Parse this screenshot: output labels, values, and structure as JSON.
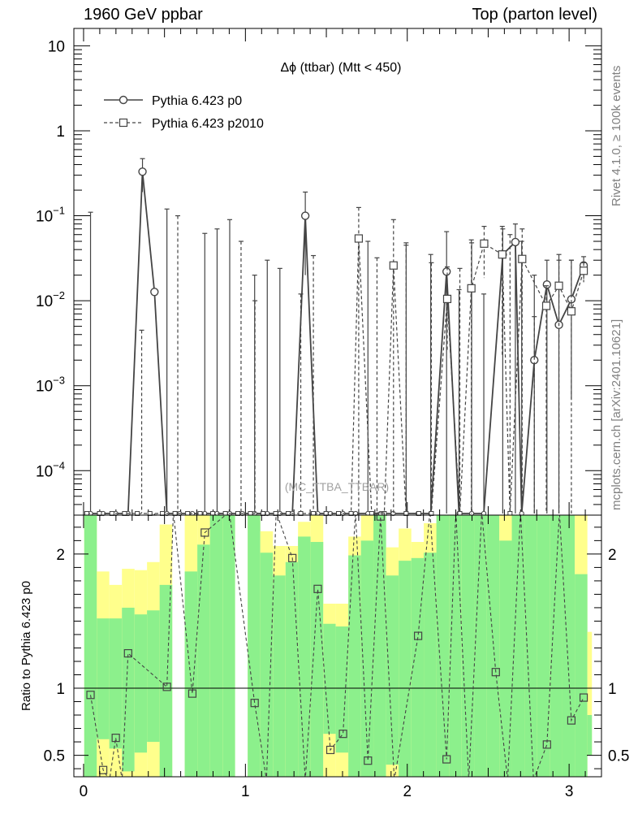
{
  "header": {
    "left": "1960 GeV ppbar",
    "right": "Top (parton level)"
  },
  "side_labels": {
    "rivet": "Rivet 4.1.0, ≥ 100k events",
    "mcplots": "mcplots.cern.ch [arXiv:2401.10621]"
  },
  "watermark": "(MC_TTBA_TTBAR)",
  "colors": {
    "yellow": "#ffff8c",
    "green": "#8cf08c",
    "line": "#444444",
    "grey_text": "#808080"
  },
  "chart_data": [
    {
      "type": "line",
      "scale": "log",
      "title": "Δϕ (ttbar) (Mtt < 450)",
      "xlabel": "",
      "ylabel": "",
      "xlim": [
        -0.06,
        3.2
      ],
      "ylim": [
        3e-05,
        16
      ],
      "yticks": [
        {
          "value": 0.0001,
          "base": "10",
          "exp": "−4"
        },
        {
          "value": 0.001,
          "base": "10",
          "exp": "−3"
        },
        {
          "value": 0.01,
          "base": "10",
          "exp": "−2"
        },
        {
          "value": 0.1,
          "base": "10",
          "exp": "−1"
        },
        {
          "value": 1,
          "base": "1",
          "exp": ""
        },
        {
          "value": 10,
          "base": "10",
          "exp": ""
        }
      ],
      "legend": {
        "position": "top-left",
        "entries": [
          "Pythia 6.423 p0",
          "Pythia 6.423 p2010"
        ]
      },
      "series": [
        {
          "name": "Pythia 6.423 p0",
          "marker": "circle",
          "style": "solid",
          "points": [
            {
              "x": 0.364,
              "y": 0.33,
              "lo": 0.19,
              "hi": 0.47
            },
            {
              "x": 0.438,
              "y": 0.0127,
              "lo": 3e-05,
              "hi": 3e-05
            },
            {
              "x": 1.37,
              "y": 0.1,
              "lo": 0.02,
              "hi": 0.19
            },
            {
              "x": 2.243,
              "y": 0.022,
              "lo": 3e-05,
              "hi": 0.065
            },
            {
              "x": 2.59,
              "y": 0.035,
              "lo": 3e-05,
              "hi": 0.07
            },
            {
              "x": 2.668,
              "y": 0.049,
              "lo": 3e-05,
              "hi": 0.08
            },
            {
              "x": 2.785,
              "y": 0.002,
              "lo": 3e-05,
              "hi": 0.02
            },
            {
              "x": 2.863,
              "y": 0.0155,
              "lo": 3e-05,
              "hi": 0.03
            },
            {
              "x": 2.937,
              "y": 0.0052,
              "lo": 3e-05,
              "hi": 0.035
            },
            {
              "x": 3.014,
              "y": 0.0104,
              "lo": 0.0007,
              "hi": 0.03
            },
            {
              "x": 3.09,
              "y": 0.026,
              "lo": 0.018,
              "hi": 0.033
            }
          ],
          "zero_bins": [
            0.043,
            0.121,
            0.199,
            0.275,
            0.515,
            0.593,
            0.672,
            0.749,
            0.825,
            0.903,
            0.981,
            1.057,
            1.135,
            1.213,
            1.29,
            1.447,
            1.525,
            1.603,
            1.681,
            1.757,
            1.835,
            1.913,
            1.993,
            2.067,
            2.145,
            2.32,
            2.398,
            2.473,
            2.707
          ],
          "empty_bars": [
            {
              "x": 0.043,
              "top": 0.11
            },
            {
              "x": 0.515,
              "top": 0.12
            },
            {
              "x": 0.749,
              "top": 0.062
            },
            {
              "x": 0.825,
              "top": 0.07
            },
            {
              "x": 0.903,
              "top": 0.09
            },
            {
              "x": 1.057,
              "top": 0.02
            },
            {
              "x": 1.135,
              "top": 0.03
            },
            {
              "x": 1.213,
              "top": 0.024
            },
            {
              "x": 1.757,
              "top": 0.05
            },
            {
              "x": 1.993,
              "top": 0.045
            },
            {
              "x": 2.145,
              "top": 0.035
            },
            {
              "x": 2.32,
              "top": 0.0135
            },
            {
              "x": 2.398,
              "top": 0.048
            },
            {
              "x": 2.473,
              "top": 0.012
            },
            {
              "x": 2.707,
              "top": 0.05
            }
          ]
        },
        {
          "name": "Pythia 6.423 p2010",
          "marker": "square",
          "style": "dashed",
          "points": [
            {
              "x": 1.7,
              "y": 0.054,
              "lo": 3e-05,
              "hi": 0.125
            },
            {
              "x": 1.915,
              "y": 0.026,
              "lo": 3e-05,
              "hi": 0.09
            },
            {
              "x": 2.247,
              "y": 0.0105,
              "lo": 0.0025,
              "hi": 0.025
            },
            {
              "x": 2.396,
              "y": 0.014,
              "lo": 3e-05,
              "hi": 0.052
            },
            {
              "x": 2.475,
              "y": 0.047,
              "lo": 0.0185,
              "hi": 0.075
            },
            {
              "x": 2.587,
              "y": 0.035,
              "lo": 0.0023,
              "hi": 0.075
            },
            {
              "x": 2.71,
              "y": 0.031,
              "lo": 3e-05,
              "hi": 0.07
            },
            {
              "x": 2.859,
              "y": 0.0087,
              "lo": 3e-05,
              "hi": 0.015
            },
            {
              "x": 2.937,
              "y": 0.015,
              "lo": 3e-05,
              "hi": 0.03
            },
            {
              "x": 3.014,
              "y": 0.0075,
              "lo": 3e-05,
              "hi": 0.03
            },
            {
              "x": 3.09,
              "y": 0.0225,
              "lo": 0.0165,
              "hi": 0.028
            }
          ],
          "zero_bins": [
            0.02,
            0.098,
            0.175,
            0.253,
            0.332,
            0.41,
            0.487,
            0.565,
            0.643,
            0.72,
            0.798,
            0.876,
            0.953,
            1.031,
            1.109,
            1.187,
            1.264,
            1.342,
            1.42,
            1.498,
            1.575,
            1.653,
            1.78,
            1.858,
            1.993,
            2.071,
            2.149,
            2.325,
            2.635
          ],
          "empty_bars": [
            {
              "x": 0.359,
              "top": 0.0045
            },
            {
              "x": 0.582,
              "top": 0.1
            },
            {
              "x": 0.973,
              "top": 0.05
            },
            {
              "x": 1.059,
              "top": 0.01
            },
            {
              "x": 1.342,
              "top": 0.012
            },
            {
              "x": 1.42,
              "top": 0.034
            },
            {
              "x": 1.813,
              "top": 0.032
            },
            {
              "x": 1.993,
              "top": 0.048
            },
            {
              "x": 2.149,
              "top": 0.028
            },
            {
              "x": 2.325,
              "top": 0.024
            },
            {
              "x": 2.635,
              "top": 0.06
            },
            {
              "x": 2.785,
              "top": 0.0065
            }
          ]
        }
      ]
    },
    {
      "type": "line",
      "title": "",
      "xlabel": "",
      "ylabel": "Ratio to Pythia 6.423 p0",
      "xlim": [
        -0.06,
        3.2
      ],
      "ylim": [
        0.34,
        2.29
      ],
      "xticks": [
        0,
        1,
        2,
        3
      ],
      "xtick_labels": [
        "0",
        "1",
        "2",
        "3"
      ],
      "yticks": [
        0.5,
        1,
        2
      ],
      "ytick_labels": [
        "0.5",
        "1",
        "2"
      ],
      "reference_line": 1,
      "bands": [
        {
          "x0": 0.004,
          "x1": 0.082,
          "y_lo": 0.34,
          "y_hi": 2.29,
          "g_lo": 0.34,
          "g_hi": 2.29
        },
        {
          "x0": 0.082,
          "x1": 0.159,
          "y_lo": 0.34,
          "y_hi": 1.87,
          "g_lo": 0.62,
          "g_hi": 1.52
        },
        {
          "x0": 0.159,
          "x1": 0.237,
          "y_lo": 0.34,
          "y_hi": 1.77,
          "g_lo": 0.55,
          "g_hi": 1.52
        },
        {
          "x0": 0.237,
          "x1": 0.315,
          "y_lo": 0.34,
          "y_hi": 1.89,
          "g_lo": 0.38,
          "g_hi": 1.6
        },
        {
          "x0": 0.315,
          "x1": 0.392,
          "y_lo": 0.34,
          "y_hi": 1.88,
          "g_lo": 0.52,
          "g_hi": 1.55
        },
        {
          "x0": 0.392,
          "x1": 0.47,
          "y_lo": 0.34,
          "y_hi": 1.94,
          "g_lo": 0.6,
          "g_hi": 1.58
        },
        {
          "x0": 0.47,
          "x1": 0.548,
          "y_lo": 0.34,
          "y_hi": 2.22,
          "g_lo": 0.34,
          "g_hi": 1.77
        },
        {
          "x0": 0.625,
          "x1": 0.703,
          "y_lo": 0.34,
          "y_hi": 2.29,
          "g_lo": 0.34,
          "g_hi": 1.87
        },
        {
          "x0": 0.703,
          "x1": 0.781,
          "y_lo": 0.34,
          "y_hi": 2.29,
          "g_lo": 0.34,
          "g_hi": 2.07
        },
        {
          "x0": 0.781,
          "x1": 0.859,
          "y_lo": 0.34,
          "y_hi": 2.29,
          "g_lo": 0.34,
          "g_hi": 2.29
        },
        {
          "x0": 0.859,
          "x1": 0.936,
          "y_lo": 0.34,
          "y_hi": 2.29,
          "g_lo": 0.34,
          "g_hi": 2.29
        },
        {
          "x0": 1.014,
          "x1": 1.092,
          "y_lo": 0.34,
          "y_hi": 2.29,
          "g_lo": 0.34,
          "g_hi": 2.29
        },
        {
          "x0": 1.092,
          "x1": 1.17,
          "y_lo": 0.34,
          "y_hi": 2.17,
          "g_lo": 0.34,
          "g_hi": 2.01
        },
        {
          "x0": 1.17,
          "x1": 1.248,
          "y_lo": 0.34,
          "y_hi": 2.06,
          "g_lo": 0.34,
          "g_hi": 1.84
        },
        {
          "x0": 1.248,
          "x1": 1.325,
          "y_lo": 0.34,
          "y_hi": 2.06,
          "g_lo": 0.34,
          "g_hi": 1.94
        },
        {
          "x0": 1.325,
          "x1": 1.403,
          "y_lo": 0.34,
          "y_hi": 2.24,
          "g_lo": 0.34,
          "g_hi": 2.13
        },
        {
          "x0": 1.403,
          "x1": 1.481,
          "y_lo": 0.34,
          "y_hi": 2.29,
          "g_lo": 0.34,
          "g_hi": 2.09
        },
        {
          "x0": 1.481,
          "x1": 1.558,
          "y_lo": 0.34,
          "y_hi": 1.63,
          "g_lo": 0.66,
          "g_hi": 1.48
        },
        {
          "x0": 1.558,
          "x1": 1.636,
          "y_lo": 0.34,
          "y_hi": 1.63,
          "g_lo": 0.52,
          "g_hi": 1.46
        },
        {
          "x0": 1.636,
          "x1": 1.714,
          "y_lo": 0.34,
          "y_hi": 2.13,
          "g_lo": 0.34,
          "g_hi": 1.99
        },
        {
          "x0": 1.714,
          "x1": 1.791,
          "y_lo": 0.34,
          "y_hi": 2.29,
          "g_lo": 0.34,
          "g_hi": 2.1
        },
        {
          "x0": 1.791,
          "x1": 1.869,
          "y_lo": 0.34,
          "y_hi": 2.29,
          "g_lo": 0.34,
          "g_hi": 2.29
        },
        {
          "x0": 1.869,
          "x1": 1.947,
          "y_lo": 0.34,
          "y_hi": 2.05,
          "g_lo": 0.43,
          "g_hi": 1.84
        },
        {
          "x0": 1.947,
          "x1": 2.025,
          "y_lo": 0.34,
          "y_hi": 2.19,
          "g_lo": 0.34,
          "g_hi": 1.95
        },
        {
          "x0": 2.025,
          "x1": 2.102,
          "y_lo": 0.34,
          "y_hi": 2.09,
          "g_lo": 0.34,
          "g_hi": 1.97
        },
        {
          "x0": 2.102,
          "x1": 2.18,
          "y_lo": 0.34,
          "y_hi": 2.23,
          "g_lo": 0.34,
          "g_hi": 2.01
        },
        {
          "x0": 2.18,
          "x1": 2.258,
          "y_lo": 0.34,
          "y_hi": 2.29,
          "g_lo": 0.34,
          "g_hi": 2.29
        },
        {
          "x0": 2.258,
          "x1": 2.336,
          "y_lo": 0.34,
          "y_hi": 2.29,
          "g_lo": 0.34,
          "g_hi": 2.29
        },
        {
          "x0": 2.336,
          "x1": 2.413,
          "y_lo": 0.34,
          "y_hi": 2.29,
          "g_lo": 0.34,
          "g_hi": 2.29
        },
        {
          "x0": 2.413,
          "x1": 2.491,
          "y_lo": 0.34,
          "y_hi": 2.29,
          "g_lo": 0.34,
          "g_hi": 2.29
        },
        {
          "x0": 2.491,
          "x1": 2.569,
          "y_lo": 0.34,
          "y_hi": 2.29,
          "g_lo": 0.34,
          "g_hi": 2.29
        },
        {
          "x0": 2.569,
          "x1": 2.646,
          "y_lo": 0.34,
          "y_hi": 2.29,
          "g_lo": 0.34,
          "g_hi": 2.1
        },
        {
          "x0": 2.646,
          "x1": 2.724,
          "y_lo": 0.34,
          "y_hi": 2.29,
          "g_lo": 0.34,
          "g_hi": 2.29
        },
        {
          "x0": 2.724,
          "x1": 2.802,
          "y_lo": 0.34,
          "y_hi": 2.29,
          "g_lo": 0.34,
          "g_hi": 2.29
        },
        {
          "x0": 2.802,
          "x1": 2.88,
          "y_lo": 0.34,
          "y_hi": 2.29,
          "g_lo": 0.34,
          "g_hi": 2.29
        },
        {
          "x0": 2.88,
          "x1": 2.957,
          "y_lo": 0.34,
          "y_hi": 2.29,
          "g_lo": 0.34,
          "g_hi": 2.29
        },
        {
          "x0": 2.957,
          "x1": 3.035,
          "y_lo": 0.34,
          "y_hi": 2.29,
          "g_lo": 0.34,
          "g_hi": 2.29
        },
        {
          "x0": 3.035,
          "x1": 3.113,
          "y_lo": 0.34,
          "y_hi": 2.29,
          "g_lo": 0.34,
          "g_hi": 1.85
        },
        {
          "x0": 3.113,
          "x1": 3.141,
          "y_lo": 0.5,
          "y_hi": 1.42,
          "g_lo": 0.5,
          "g_hi": 0.8
        }
      ],
      "series": [
        {
          "name": "Pythia 6.423 p2010 / Pythia 6.423 p0",
          "marker": "square",
          "style": "dashed",
          "points": [
            {
              "x": 0.043,
              "y": 0.95
            },
            {
              "x": 0.121,
              "y": 0.39
            },
            {
              "x": 0.199,
              "y": 0.63
            },
            {
              "x": 0.275,
              "y": 1.26
            },
            {
              "x": 0.515,
              "y": 1.01
            },
            {
              "x": 0.672,
              "y": 0.96
            },
            {
              "x": 0.749,
              "y": 2.16
            },
            {
              "x": 1.057,
              "y": 0.89
            },
            {
              "x": 1.29,
              "y": 1.97
            },
            {
              "x": 1.447,
              "y": 1.74
            },
            {
              "x": 1.525,
              "y": 0.54
            },
            {
              "x": 1.603,
              "y": 0.66
            },
            {
              "x": 1.757,
              "y": 0.46
            },
            {
              "x": 1.835,
              "y": 2.28
            },
            {
              "x": 2.067,
              "y": 1.39
            },
            {
              "x": 2.243,
              "y": 0.47
            },
            {
              "x": 2.547,
              "y": 1.12
            },
            {
              "x": 2.863,
              "y": 0.58
            },
            {
              "x": 3.014,
              "y": 0.76
            },
            {
              "x": 3.09,
              "y": 0.93
            }
          ],
          "offscale": [
            {
              "x": 0.16,
              "dir": "down"
            },
            {
              "x": 0.238,
              "dir": "down"
            },
            {
              "x": 0.555,
              "dir": "up"
            },
            {
              "x": 0.9,
              "dir": "up"
            },
            {
              "x": 1.13,
              "dir": "down"
            },
            {
              "x": 1.19,
              "dir": "up"
            },
            {
              "x": 1.37,
              "dir": "down"
            },
            {
              "x": 1.68,
              "dir": "up"
            },
            {
              "x": 1.92,
              "dir": "down"
            },
            {
              "x": 2.14,
              "dir": "up"
            },
            {
              "x": 2.3,
              "dir": "up"
            },
            {
              "x": 2.38,
              "dir": "down"
            },
            {
              "x": 2.46,
              "dir": "up"
            },
            {
              "x": 2.62,
              "dir": "down"
            },
            {
              "x": 2.7,
              "dir": "up"
            },
            {
              "x": 2.78,
              "dir": "down"
            },
            {
              "x": 2.94,
              "dir": "up"
            }
          ]
        }
      ]
    }
  ]
}
